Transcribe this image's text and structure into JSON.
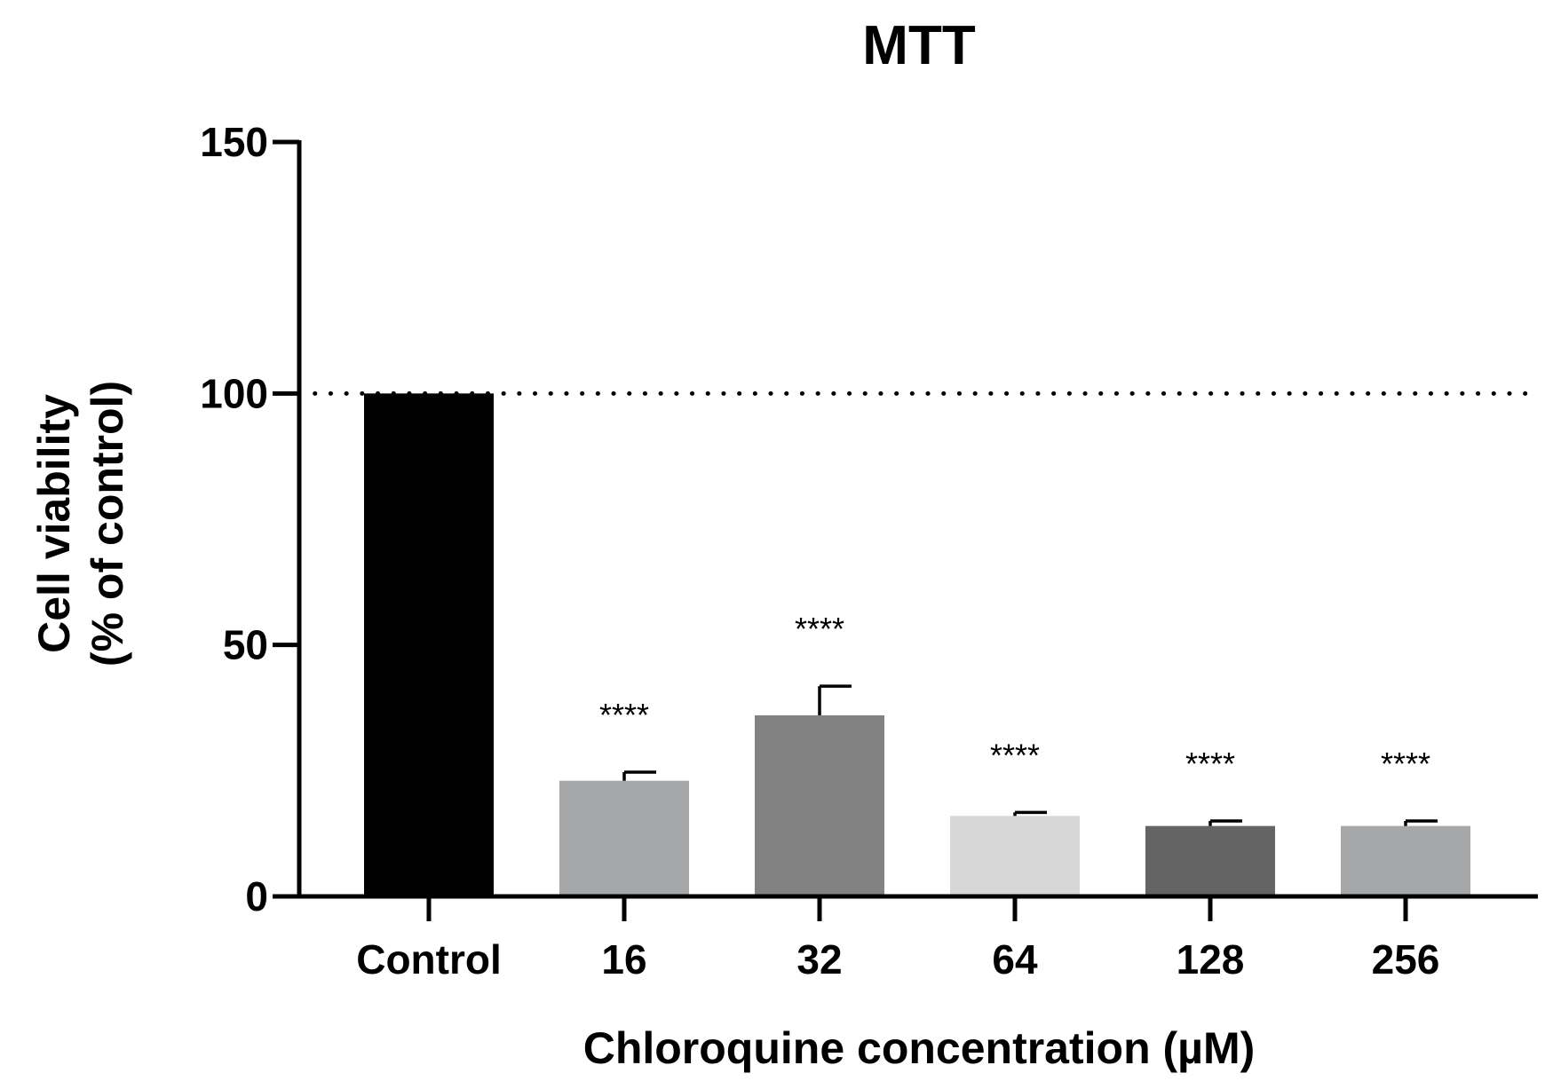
{
  "chart_data": {
    "type": "bar",
    "title": "MTT",
    "xlabel": "Chloroquine concentration (µM)",
    "ylabel_lines": [
      "Cell viability",
      "(% of control)"
    ],
    "ylim": [
      0,
      150
    ],
    "yticks": [
      0,
      50,
      100,
      150
    ],
    "reference_line": 100,
    "categories": [
      "Control",
      "16",
      "32",
      "64",
      "128",
      "256"
    ],
    "values": [
      100,
      23,
      36,
      16,
      14,
      14
    ],
    "errors": [
      0,
      1.7,
      5.8,
      0.7,
      1.0,
      1.0
    ],
    "significance": [
      "",
      "****",
      "****",
      "****",
      "****",
      "****"
    ],
    "colors": [
      "#000000",
      "#a6a7a9",
      "#828282",
      "#d7d7d7",
      "#646464",
      "#a6a7a9"
    ]
  }
}
